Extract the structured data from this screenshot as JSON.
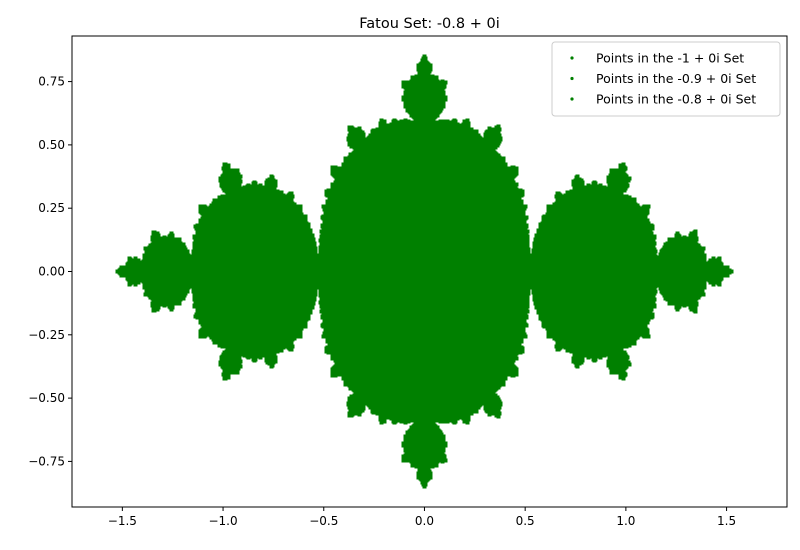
{
  "chart_data": {
    "type": "scatter",
    "title": "Fatou Set: -0.8 + 0i",
    "xlabel": "",
    "ylabel": "",
    "xlim": [
      -1.75,
      1.8
    ],
    "ylim": [
      -0.93,
      0.93
    ],
    "x_ticks": [
      -1.5,
      -1.0,
      -0.5,
      0.0,
      0.5,
      1.0,
      1.5
    ],
    "x_tick_labels": [
      "−1.5",
      "−1.0",
      "−0.5",
      "0.0",
      "0.5",
      "1.0",
      "1.5"
    ],
    "y_ticks": [
      0.75,
      0.5,
      0.25,
      0.0,
      -0.25,
      -0.5,
      -0.75
    ],
    "y_tick_labels": [
      "0.75",
      "0.50",
      "0.25",
      "0.00",
      "−0.25",
      "−0.50",
      "−0.75"
    ],
    "grid": false,
    "legend_position": "top-right",
    "series": [
      {
        "name": "Points in the -1 + 0i Set",
        "color": "#008000",
        "c": [
          -1.0,
          0.0
        ]
      },
      {
        "name": "Points in the -0.9 + 0i Set",
        "color": "#008000",
        "c": [
          -0.9,
          0.0
        ]
      },
      {
        "name": "Points in the -0.8 + 0i Set",
        "color": "#008000",
        "c": [
          -0.8,
          0.0
        ]
      }
    ],
    "filled_set": {
      "c": [
        -0.8,
        0.0
      ],
      "color": "#008000",
      "x_range": [
        -1.62,
        1.62
      ],
      "y_range": [
        -0.84,
        0.84
      ]
    }
  }
}
